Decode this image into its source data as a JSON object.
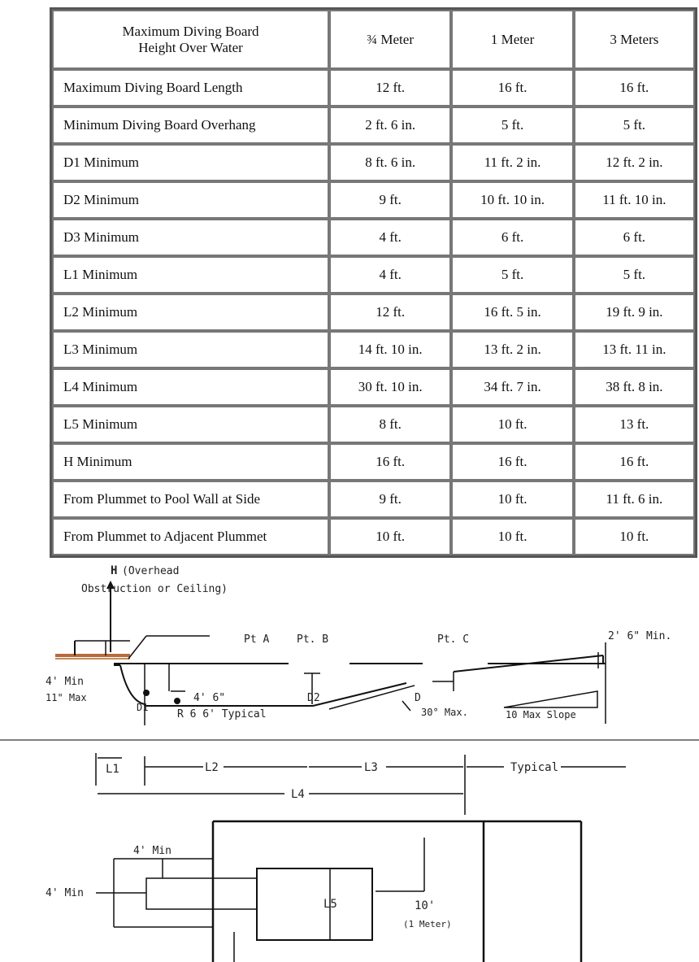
{
  "table": {
    "header": {
      "label_line1": "Maximum Diving Board",
      "label_line2": "Height Over Water",
      "columns": [
        "¾ Meter",
        "1 Meter",
        "3 Meters"
      ]
    },
    "rows": [
      {
        "label": "Maximum Diving Board Length",
        "values": [
          "12 ft.",
          "16 ft.",
          "16 ft."
        ]
      },
      {
        "label": "Minimum Diving Board Overhang",
        "values": [
          "2 ft. 6 in.",
          "5 ft.",
          "5 ft."
        ]
      },
      {
        "label": "D1 Minimum",
        "values": [
          "8 ft. 6 in.",
          "11 ft. 2 in.",
          "12 ft. 2 in."
        ]
      },
      {
        "label": "D2 Minimum",
        "values": [
          "9 ft.",
          "10 ft. 10 in.",
          "11 ft. 10 in."
        ]
      },
      {
        "label": "D3 Minimum",
        "values": [
          "4 ft.",
          "6 ft.",
          "6 ft."
        ]
      },
      {
        "label": "L1 Minimum",
        "values": [
          "4 ft.",
          "5 ft.",
          "5 ft."
        ]
      },
      {
        "label": "L2 Minimum",
        "values": [
          "12 ft.",
          "16 ft. 5 in.",
          "19 ft. 9 in."
        ]
      },
      {
        "label": "L3 Minimum",
        "values": [
          "14 ft. 10 in.",
          "13 ft. 2 in.",
          "13 ft. 11 in."
        ]
      },
      {
        "label": "L4 Minimum",
        "values": [
          "30 ft. 10 in.",
          "34 ft. 7 in.",
          "38 ft. 8 in."
        ]
      },
      {
        "label": "L5 Minimum",
        "values": [
          "8 ft.",
          "10 ft.",
          "13 ft."
        ]
      },
      {
        "label": "H Minimum",
        "values": [
          "16 ft.",
          "16 ft.",
          "16 ft."
        ]
      },
      {
        "label": "From Plummet to Pool Wall at Side",
        "values": [
          "9 ft.",
          "10 ft.",
          "11 ft. 6 in."
        ]
      },
      {
        "label": "From Plummet to Adjacent Plummet",
        "values": [
          "10 ft.",
          "10 ft.",
          "10 ft."
        ]
      }
    ]
  },
  "diagram": {
    "h_letter": "H",
    "h_line1": "(Overhead",
    "h_line2": "Obstruction or Ceiling)",
    "pt_a": "Pt A",
    "pt_b": "Pt. B",
    "pt_c": "Pt. C",
    "deep_end_min": "2' 6\"  Min.",
    "four_min": "4' Min",
    "eleven_max": "11\" Max",
    "d1": "D1",
    "four_six": "4' 6\"",
    "radius": "R 6  6' Typical",
    "d2": "D2",
    "d": "D",
    "thirty_max": "30° Max.",
    "slope": "10 Max Slope",
    "l1": "L1",
    "l2": "L2",
    "l3": "L3",
    "l4": "L4",
    "typical": "Typical",
    "plan_four_min_top": "4' Min",
    "plan_four_min_left": "4' Min",
    "l5": "L5",
    "ten_ft": "10'",
    "one_meter": "(1 Meter)"
  }
}
